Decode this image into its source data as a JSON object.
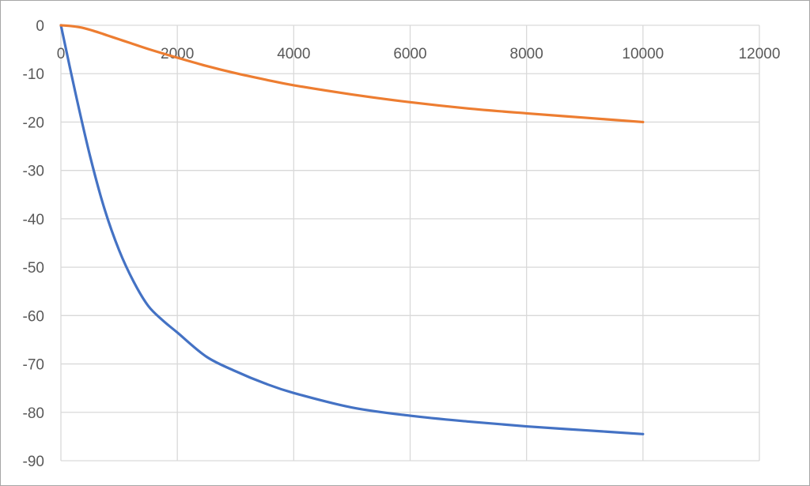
{
  "chart_data": {
    "type": "line",
    "title": "",
    "xlabel": "",
    "ylabel": "",
    "xlim": [
      0,
      12000
    ],
    "ylim": [
      -90,
      0
    ],
    "x_ticks": [
      0,
      2000,
      4000,
      6000,
      8000,
      10000,
      12000
    ],
    "y_ticks": [
      0,
      -10,
      -20,
      -30,
      -40,
      -50,
      -60,
      -70,
      -80,
      -90
    ],
    "x_tick_labels": [
      "0",
      "2000",
      "4000",
      "6000",
      "8000",
      "10000",
      "12000"
    ],
    "y_tick_labels": [
      "0",
      "-10",
      "-20",
      "-30",
      "-40",
      "-50",
      "-60",
      "-70",
      "-80",
      "-90"
    ],
    "grid": true,
    "legend": "none",
    "series": [
      {
        "color": "#4472c4",
        "x": [
          0,
          250,
          500,
          750,
          1000,
          1250,
          1500,
          1750,
          2000,
          2500,
          3000,
          3500,
          4000,
          5000,
          6000,
          7000,
          8000,
          9000,
          10000
        ],
        "y": [
          0,
          -14,
          -27,
          -38,
          -46.5,
          -53,
          -58,
          -61,
          -63.5,
          -68.5,
          -71.5,
          -74,
          -76,
          -79,
          -80.7,
          -81.9,
          -82.9,
          -83.7,
          -84.5
        ]
      },
      {
        "color": "#ed7d31",
        "x": [
          0,
          200,
          400,
          600,
          800,
          1000,
          1200,
          1500,
          2000,
          2500,
          3000,
          3500,
          4000,
          5000,
          6000,
          7000,
          8000,
          9000,
          10000
        ],
        "y": [
          0,
          -0.2,
          -0.6,
          -1.3,
          -2.1,
          -2.9,
          -3.7,
          -4.9,
          -6.7,
          -8.4,
          -9.9,
          -11.2,
          -12.4,
          -14.3,
          -15.9,
          -17.2,
          -18.2,
          -19.1,
          -20
        ]
      }
    ]
  }
}
